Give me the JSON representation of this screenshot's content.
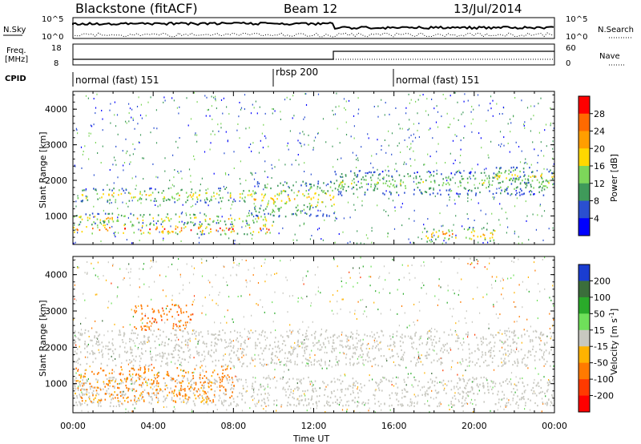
{
  "header": {
    "station": "Blackstone (fitACF)",
    "beam": "Beam 12",
    "date": "13/Jul/2014"
  },
  "sky_panel": {
    "left_label": "N.Sky",
    "left_ticks": [
      "10^5",
      "10^0"
    ],
    "right_ticks": [
      "10^5",
      "10^0"
    ],
    "right_label": "N.Search"
  },
  "freq_panel": {
    "left_label_1": "Freq.",
    "left_label_2": "[MHz]",
    "left_ticks": [
      "18",
      "8"
    ],
    "right_ticks": [
      "60",
      "0"
    ],
    "right_label": "Nave"
  },
  "cpid": {
    "label": "CPID",
    "segments": [
      {
        "name": "normal (fast) 151",
        "start_hour": 0
      },
      {
        "name": "rbsp 200",
        "start_hour": 10
      },
      {
        "name": "normal (fast) 151",
        "start_hour": 16
      }
    ]
  },
  "power_colorbar": {
    "title": "Power [dB]",
    "ticks": [
      "28",
      "24",
      "20",
      "16",
      "12",
      "8",
      "4"
    ],
    "colors": [
      "#ff0000",
      "#ff6a00",
      "#ff9e00",
      "#ffd800",
      "#7dd65a",
      "#3f9a5a",
      "#2a4fd0",
      "#0000ff"
    ]
  },
  "velocity_colorbar": {
    "title": "Velocity [m s",
    "title_sup": "-1",
    "title_end": "]",
    "ticks": [
      "200",
      "100",
      "50",
      "15",
      "-15",
      "-50",
      "-100",
      "-200"
    ],
    "colors": [
      "#1a3dd1",
      "#3b6e3b",
      "#2aaa2a",
      "#6fe05a",
      "#c8c8c0",
      "#ffb300",
      "#ff7a00",
      "#ff3a00",
      "#ff0000"
    ]
  },
  "chart_data": [
    {
      "type": "heatmap",
      "title": "Power",
      "ylabel": "Slant Range [km]",
      "xlabel": "Time UT",
      "xlim": [
        0,
        24
      ],
      "ylim": [
        200,
        4500
      ],
      "x_ticks": [
        "00:00",
        "04:00",
        "08:00",
        "12:00",
        "16:00",
        "20:00",
        "00:00"
      ],
      "y_ticks": [
        1000,
        2000,
        3000,
        4000
      ],
      "bands": [
        {
          "x": [
            0,
            10
          ],
          "range": [
            500,
            800
          ],
          "value": 24
        },
        {
          "x": [
            0,
            10
          ],
          "range": [
            800,
            1100
          ],
          "value": 16
        },
        {
          "x": [
            0,
            9
          ],
          "range": [
            1400,
            1800
          ],
          "value": 16
        },
        {
          "x": [
            9,
            13
          ],
          "range": [
            1000,
            2000
          ],
          "value": 16
        },
        {
          "x": [
            13,
            24
          ],
          "range": [
            1600,
            2300
          ],
          "value": 12
        },
        {
          "x": [
            17.5,
            21
          ],
          "range": [
            300,
            700
          ],
          "value": 20
        },
        {
          "x": [
            21,
            24
          ],
          "range": [
            1900,
            2400
          ],
          "value": 16
        }
      ]
    },
    {
      "type": "heatmap",
      "title": "Velocity",
      "ylabel": "Slant Range [km]",
      "xlabel": "Time UT",
      "xlim": [
        0,
        24
      ],
      "ylim": [
        200,
        4500
      ],
      "x_ticks": [
        "00:00",
        "04:00",
        "08:00",
        "12:00",
        "16:00",
        "20:00",
        "00:00"
      ],
      "y_ticks": [
        1000,
        2000,
        3000,
        4000
      ],
      "bands": [
        {
          "x": [
            0,
            24
          ],
          "range": [
            1500,
            2500
          ],
          "value": 0
        },
        {
          "x": [
            0,
            24
          ],
          "range": [
            400,
            1200
          ],
          "value": 0
        },
        {
          "x": [
            0,
            8
          ],
          "range": [
            500,
            1500
          ],
          "value": -60
        },
        {
          "x": [
            3,
            6
          ],
          "range": [
            2500,
            3200
          ],
          "value": -80
        }
      ]
    }
  ]
}
